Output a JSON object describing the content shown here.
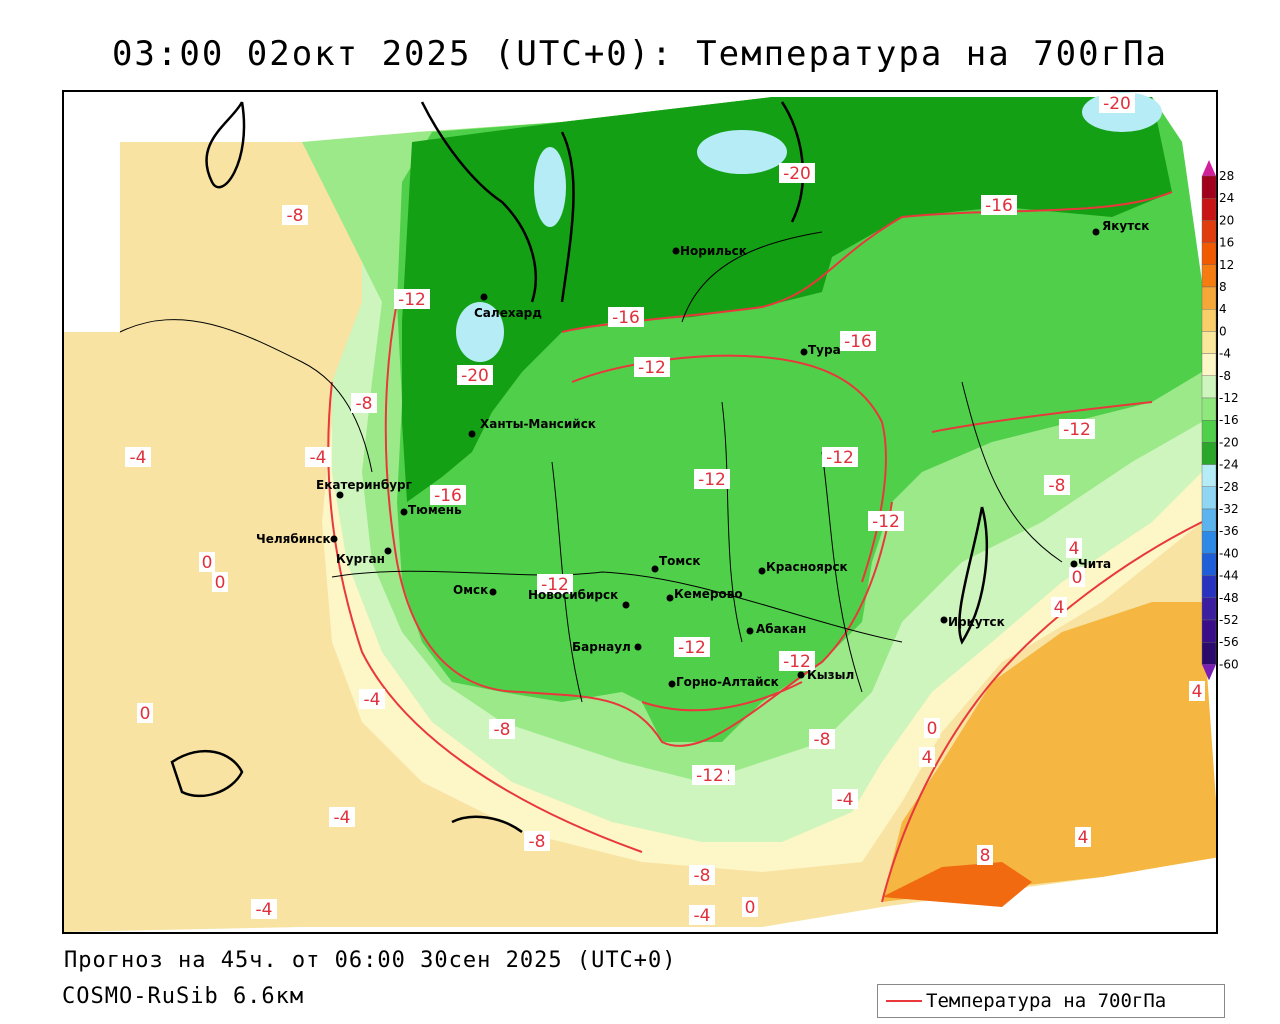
{
  "title": "03:00 02окт 2025 (UTC+0): Температура на 700гПа",
  "forecast_info": "Прогноз на 45ч. от 06:00 30сен 2025 (UTC+0)",
  "model_info": "COSMO-RuSib 6.6км",
  "legend": {
    "label": "Температура на 700гПа",
    "line_color": "#e8383c"
  },
  "colorbar": {
    "ticks": [
      "28",
      "24",
      "20",
      "16",
      "12",
      "8",
      "4",
      "0",
      "-4",
      "-8",
      "-12",
      "-16",
      "-20",
      "-24",
      "-28",
      "-32",
      "-36",
      "-40",
      "-44",
      "-48",
      "-52",
      "-56",
      "-60"
    ],
    "colors": [
      "#a0001c",
      "#c81414",
      "#e03c0c",
      "#f05a00",
      "#f47c10",
      "#f5a838",
      "#f8cd6a",
      "#fbe79c",
      "#fdf6c6",
      "#cdf5bd",
      "#8ee87c",
      "#50d04a",
      "#2aa62a",
      "#b6ecf6",
      "#8fd6f2",
      "#5cb4ee",
      "#2c8ae6",
      "#1e5ed8",
      "#2834c0",
      "#3c1ea0",
      "#3a0e88",
      "#2a0a6a"
    ]
  },
  "contour_labels": [
    "-20",
    "-20",
    "-8",
    "-16",
    "-12",
    "-16",
    "-20",
    "-12",
    "-12",
    "-16",
    "-8",
    "-4",
    "-4",
    "-16",
    "-12",
    "-12",
    "-12",
    "-12",
    "-12",
    "-8",
    "-12",
    "-12",
    "-4",
    "0",
    "0",
    "0",
    "-4",
    "-8",
    "-12",
    "-8",
    "-4",
    "-8",
    "-4",
    "-8",
    "-4",
    "0",
    "0",
    "4",
    "4",
    "4",
    "4",
    "8",
    "4",
    "0"
  ],
  "cities": [
    "Норильск",
    "Якутск",
    "Салехард",
    "Тура",
    "Ханты-Мансийск",
    "Екатеринбург",
    "Тюмень",
    "Челябинск",
    "Курган",
    "Омск",
    "Новосибирск",
    "Томск",
    "Кемерово",
    "Красноярск",
    "Барнаул",
    "Абакан",
    "Горно-Алтайск",
    "Кызыл",
    "Иркутск",
    "Чита"
  ]
}
